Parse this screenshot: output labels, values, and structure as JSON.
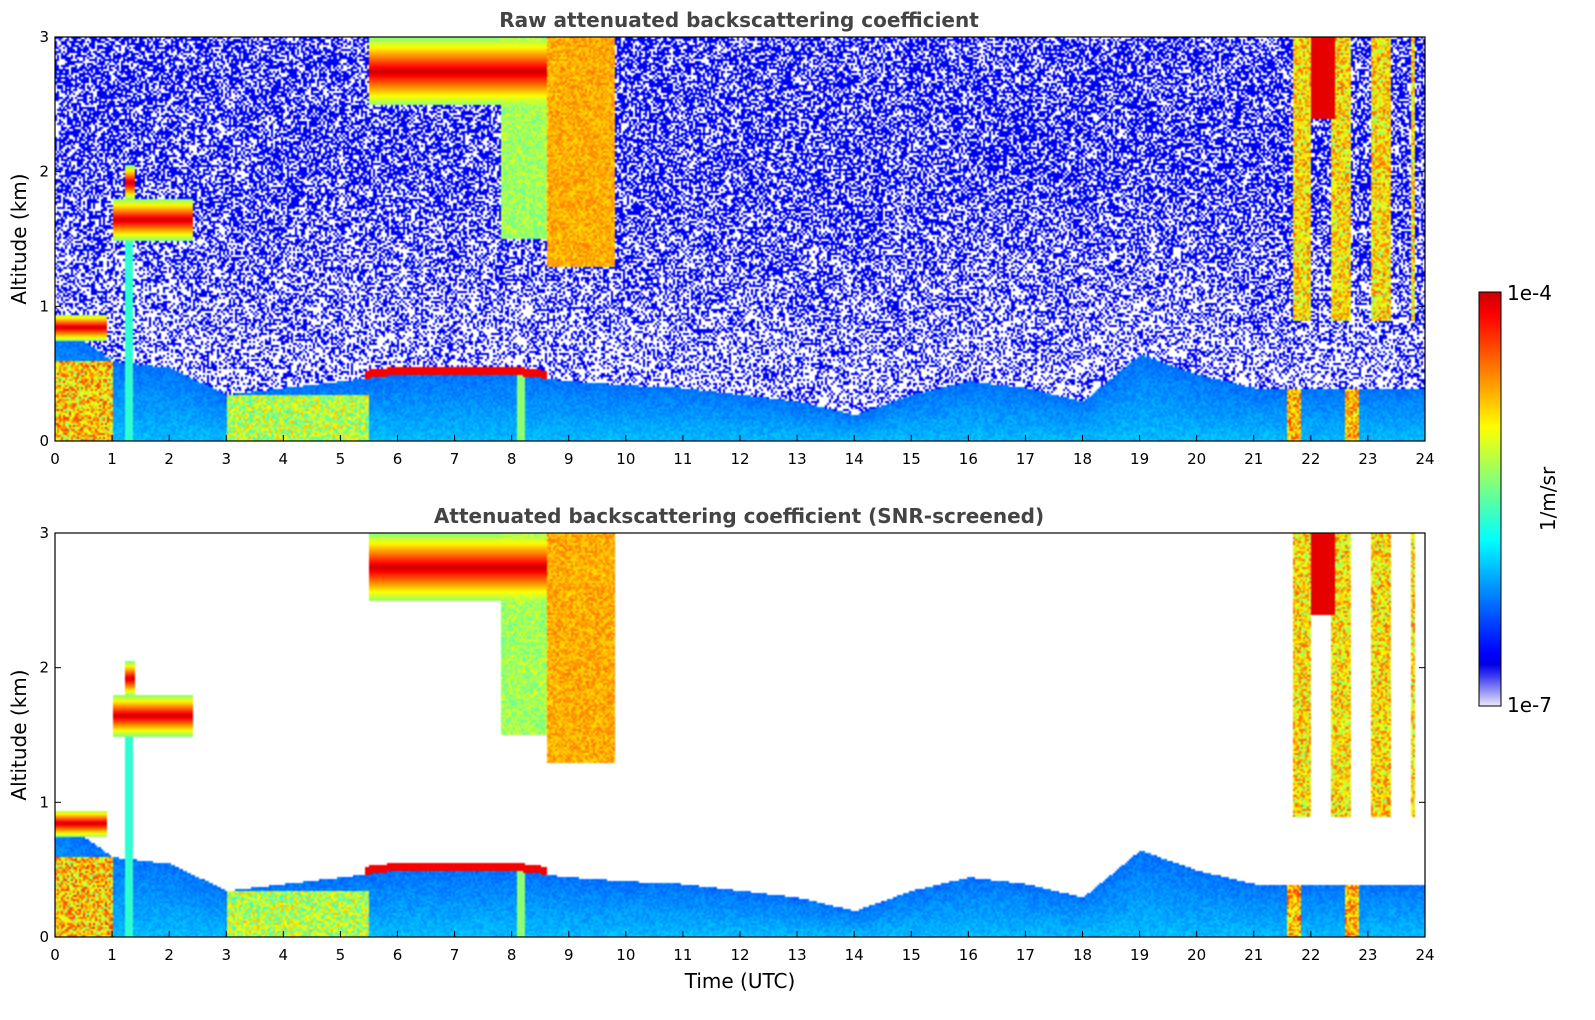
{
  "chart_data": [
    {
      "type": "heatmap",
      "title": "Raw attenuated backscattering coefficient",
      "xlabel": "",
      "ylabel": "Altitude (km)",
      "xlim": [
        0,
        24
      ],
      "ylim": [
        0,
        3
      ],
      "x_ticks": [
        "0",
        "1",
        "2",
        "3",
        "4",
        "5",
        "6",
        "7",
        "8",
        "9",
        "10",
        "11",
        "12",
        "13",
        "14",
        "15",
        "16",
        "17",
        "18",
        "19",
        "20",
        "21",
        "22",
        "23",
        "24"
      ],
      "y_ticks": [
        "0",
        "1",
        "2",
        "3"
      ],
      "screened": false
    },
    {
      "type": "heatmap",
      "title": "Attenuated backscattering coefficient (SNR-screened)",
      "xlabel": "Time (UTC)",
      "ylabel": "Altitude (km)",
      "xlim": [
        0,
        24
      ],
      "ylim": [
        0,
        3
      ],
      "x_ticks": [
        "0",
        "1",
        "2",
        "3",
        "4",
        "5",
        "6",
        "7",
        "8",
        "9",
        "10",
        "11",
        "12",
        "13",
        "14",
        "15",
        "16",
        "17",
        "18",
        "19",
        "20",
        "21",
        "22",
        "23",
        "24"
      ],
      "y_ticks": [
        "0",
        "1",
        "2",
        "3"
      ],
      "screened": true
    }
  ],
  "colorbar": {
    "label": "1/m/sr",
    "max_label": "1e-4",
    "min_label": "1e-7",
    "scale": "log",
    "range": [
      1e-07,
      0.0001
    ],
    "colormap": "jet (white-lavender at low end)"
  },
  "features": {
    "boundary_layer_top_km": [
      [
        0,
        0.9
      ],
      [
        1,
        0.6
      ],
      [
        2,
        0.55
      ],
      [
        3,
        0.35
      ],
      [
        4,
        0.4
      ],
      [
        5,
        0.45
      ],
      [
        6,
        0.5
      ],
      [
        7,
        0.5
      ],
      [
        8,
        0.5
      ],
      [
        9,
        0.45
      ],
      [
        10,
        0.42
      ],
      [
        11,
        0.4
      ],
      [
        12,
        0.35
      ],
      [
        13,
        0.3
      ],
      [
        14,
        0.2
      ],
      [
        15,
        0.35
      ],
      [
        16,
        0.45
      ],
      [
        17,
        0.4
      ],
      [
        18,
        0.3
      ],
      [
        19,
        0.65
      ],
      [
        20,
        0.5
      ],
      [
        21,
        0.4
      ],
      [
        22,
        0.4
      ],
      [
        23,
        0.4
      ],
      [
        24,
        0.4
      ]
    ],
    "cloud_layers": [
      {
        "t0": 1.0,
        "t1": 2.4,
        "z0": 1.5,
        "z1": 1.8
      },
      {
        "t0": 1.2,
        "t1": 1.4,
        "z0": 1.8,
        "z1": 2.05
      },
      {
        "t0": 5.5,
        "t1": 8.6,
        "z0": 2.5,
        "z1": 3.0
      },
      {
        "t0": 0.0,
        "t1": 0.9,
        "z0": 0.75,
        "z1": 0.95
      }
    ]
  }
}
